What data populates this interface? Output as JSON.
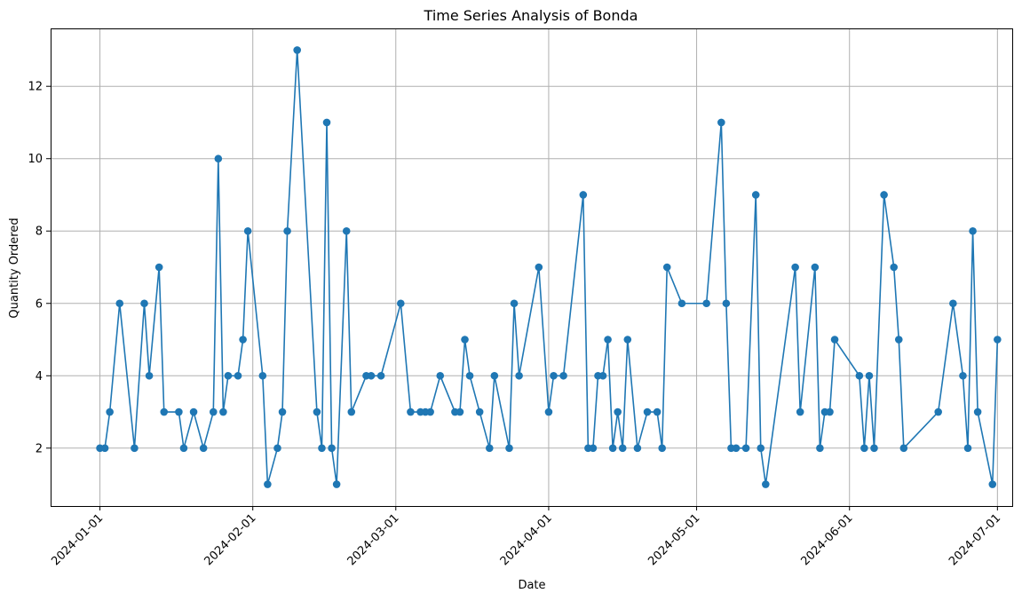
{
  "chart_data": {
    "type": "line",
    "title": "Time Series Analysis of Bonda",
    "xlabel": "Date",
    "ylabel": "Quantity Ordered",
    "grid": true,
    "x_ticks": [
      "2024-01-01",
      "2024-02-01",
      "2024-03-01",
      "2024-04-01",
      "2024-05-01",
      "2024-06-01",
      "2024-07-01"
    ],
    "y_ticks": [
      2,
      4,
      6,
      8,
      10,
      12
    ],
    "x_range": [
      "2023-12-22",
      "2024-07-04"
    ],
    "ylim": [
      0.4,
      13.6
    ],
    "color": "#1f77b4",
    "x": [
      "2024-01-01",
      "2024-01-02",
      "2024-01-03",
      "2024-01-05",
      "2024-01-08",
      "2024-01-10",
      "2024-01-11",
      "2024-01-13",
      "2024-01-14",
      "2024-01-17",
      "2024-01-18",
      "2024-01-20",
      "2024-01-22",
      "2024-01-24",
      "2024-01-25",
      "2024-01-26",
      "2024-01-27",
      "2024-01-29",
      "2024-01-30",
      "2024-01-31",
      "2024-02-03",
      "2024-02-04",
      "2024-02-06",
      "2024-02-07",
      "2024-02-08",
      "2024-02-10",
      "2024-02-14",
      "2024-02-15",
      "2024-02-16",
      "2024-02-17",
      "2024-02-18",
      "2024-02-20",
      "2024-02-21",
      "2024-02-24",
      "2024-02-25",
      "2024-02-27",
      "2024-03-02",
      "2024-03-04",
      "2024-03-06",
      "2024-03-07",
      "2024-03-08",
      "2024-03-10",
      "2024-03-13",
      "2024-03-14",
      "2024-03-15",
      "2024-03-16",
      "2024-03-18",
      "2024-03-20",
      "2024-03-21",
      "2024-03-24",
      "2024-03-25",
      "2024-03-26",
      "2024-03-30",
      "2024-04-01",
      "2024-04-02",
      "2024-04-04",
      "2024-04-08",
      "2024-04-09",
      "2024-04-10",
      "2024-04-11",
      "2024-04-12",
      "2024-04-13",
      "2024-04-14",
      "2024-04-15",
      "2024-04-16",
      "2024-04-17",
      "2024-04-19",
      "2024-04-21",
      "2024-04-23",
      "2024-04-24",
      "2024-04-25",
      "2024-04-28",
      "2024-05-03",
      "2024-05-06",
      "2024-05-07",
      "2024-05-08",
      "2024-05-09",
      "2024-05-11",
      "2024-05-13",
      "2024-05-14",
      "2024-05-15",
      "2024-05-21",
      "2024-05-22",
      "2024-05-25",
      "2024-05-26",
      "2024-05-27",
      "2024-05-28",
      "2024-05-29",
      "2024-06-03",
      "2024-06-04",
      "2024-06-05",
      "2024-06-06",
      "2024-06-08",
      "2024-06-10",
      "2024-06-11",
      "2024-06-12",
      "2024-06-19",
      "2024-06-22",
      "2024-06-24",
      "2024-06-25",
      "2024-06-26",
      "2024-06-27",
      "2024-06-30",
      "2024-07-01"
    ],
    "series": [
      {
        "values": [
          2,
          2,
          3,
          6,
          2,
          6,
          4,
          7,
          3,
          3,
          2,
          3,
          2,
          3,
          10,
          3,
          4,
          4,
          5,
          8,
          4,
          1,
          2,
          3,
          8,
          13,
          3,
          2,
          11,
          2,
          1,
          8,
          3,
          4,
          4,
          4,
          6,
          3,
          3,
          3,
          3,
          4,
          3,
          3,
          5,
          4,
          3,
          2,
          4,
          2,
          6,
          4,
          7,
          3,
          4,
          4,
          9,
          2,
          2,
          4,
          4,
          5,
          2,
          3,
          2,
          5,
          2,
          3,
          3,
          2,
          7,
          6,
          6,
          11,
          6,
          2,
          2,
          2,
          9,
          2,
          1,
          7,
          3,
          7,
          2,
          3,
          3,
          5,
          4,
          2,
          4,
          2,
          9,
          7,
          5,
          2,
          3,
          6,
          4,
          2,
          8,
          3,
          1,
          5
        ]
      }
    ]
  }
}
